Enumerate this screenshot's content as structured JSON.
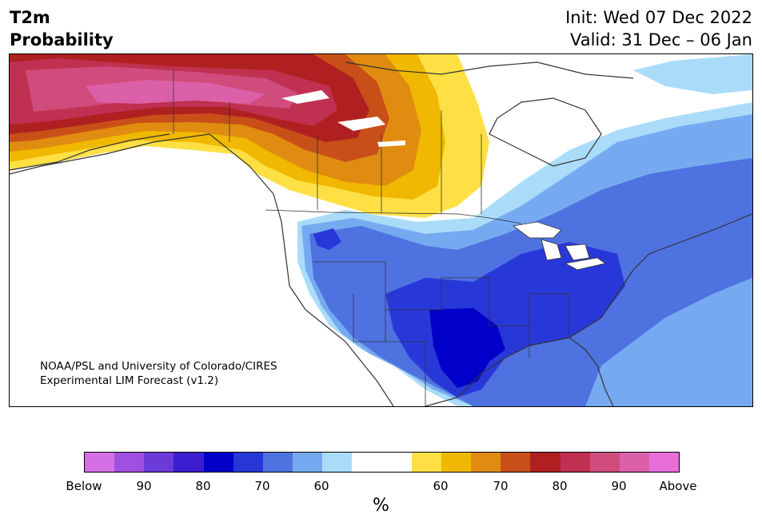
{
  "title": {
    "left_line1": "T2m",
    "left_line2": "Probability",
    "init": "Init: Wed 07 Dec 2022",
    "valid": "Valid: 31 Dec – 06 Jan"
  },
  "credit": {
    "line1": "NOAA/PSL and University of Colorado/CIRES",
    "line2": "Experimental LIM Forecast (v1.2)"
  },
  "colorbar": {
    "colors": [
      "#d56fe6",
      "#a050e0",
      "#6c3ad8",
      "#3a1ed0",
      "#0000c8",
      "#2838d8",
      "#4e72e0",
      "#76aaf0",
      "#aadcfa",
      "#ffffff",
      "#ffffff",
      "#ffe044",
      "#f0b800",
      "#e08c10",
      "#c85018",
      "#b02020",
      "#c03050",
      "#d04c7c",
      "#dc60a8",
      "#e86ed8"
    ],
    "tick_labels": [
      "Below",
      "90",
      "80",
      "70",
      "60",
      "60",
      "70",
      "80",
      "90",
      "Above"
    ],
    "unit": "%"
  }
}
